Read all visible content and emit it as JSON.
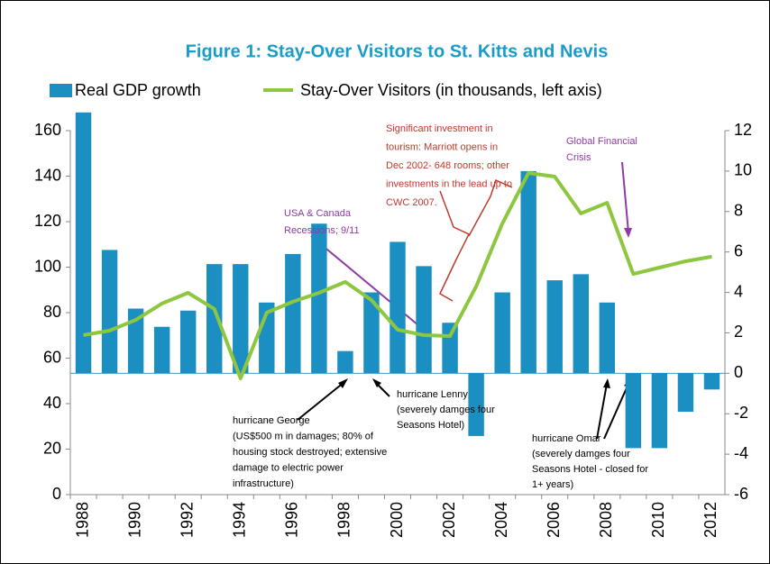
{
  "chart_data": {
    "type": "bar_line",
    "title": "Figure 1: Stay-Over Visitors to St. Kitts and Nevis",
    "categories": [
      "1988",
      null,
      "1990",
      null,
      "1992",
      null,
      "1994",
      null,
      "1996",
      null,
      "1998",
      null,
      "2000",
      null,
      "2002",
      null,
      "2004",
      null,
      "2006",
      null,
      "2008",
      null,
      "2010",
      null,
      "2012"
    ],
    "series": [
      {
        "name": "Real GDP growth",
        "type": "bar",
        "axis": "y2",
        "color": "#1b8fc2",
        "values": [
          12.9,
          6.1,
          3.2,
          2.3,
          3.1,
          5.4,
          5.4,
          3.5,
          5.9,
          7.4,
          1.1,
          4.0,
          6.5,
          5.3,
          2.5,
          -3.1,
          4.0,
          10.0,
          4.6,
          4.9,
          3.5,
          -3.7,
          -3.7,
          -1.9,
          -0.8
        ]
      },
      {
        "name": "Stay-Over Visitors (in thousands, left axis)",
        "type": "line",
        "axis": "y",
        "color": "#8dc63f",
        "values": [
          70.1,
          72.1,
          76.8,
          84.0,
          88.7,
          81.6,
          51.1,
          80.0,
          84.8,
          88.7,
          93.5,
          85.5,
          72.5,
          70.1,
          69.7,
          91.5,
          119.2,
          141.4,
          139.8,
          123.6,
          128.3,
          97.0,
          99.8,
          102.6,
          104.6
        ]
      }
    ],
    "ylim": [
      0,
      160
    ],
    "yticks": [
      0,
      20,
      40,
      60,
      80,
      100,
      120,
      140,
      160
    ],
    "y2lim": [
      -6,
      12
    ],
    "y2ticks": [
      -6,
      -4,
      -2,
      0,
      2,
      4,
      6,
      8,
      10,
      12
    ],
    "legend": "top",
    "annotations": [
      {
        "color": "#c0392b",
        "lines": [
          "Significant investment in",
          "tourism: Marriott opens in",
          "Dec 2002- 648 rooms; other",
          "investments in the lead up to",
          "CWC 2007."
        ]
      },
      {
        "color": "#8e3ba3",
        "lines": [
          "Global Financial",
          "Crisis"
        ]
      },
      {
        "color": "#8e3ba3",
        "lines": [
          "USA & Canada",
          "Recessions; 9/11"
        ]
      },
      {
        "color": "#000000",
        "lines": [
          "hurricane George",
          "(US$500 m in damages; 80% of",
          "housing stock destroyed; extensive",
          "damage to electric power",
          "infrastructure)"
        ]
      },
      {
        "color": "#000000",
        "lines": [
          "hurricane Lenny",
          "(severely damges four",
          "Seasons Hotel)"
        ]
      },
      {
        "color": "#000000",
        "lines": [
          "hurricane Omar",
          "(severely damges four",
          "Seasons Hotel - closed for",
          "1+ years)"
        ]
      }
    ]
  }
}
